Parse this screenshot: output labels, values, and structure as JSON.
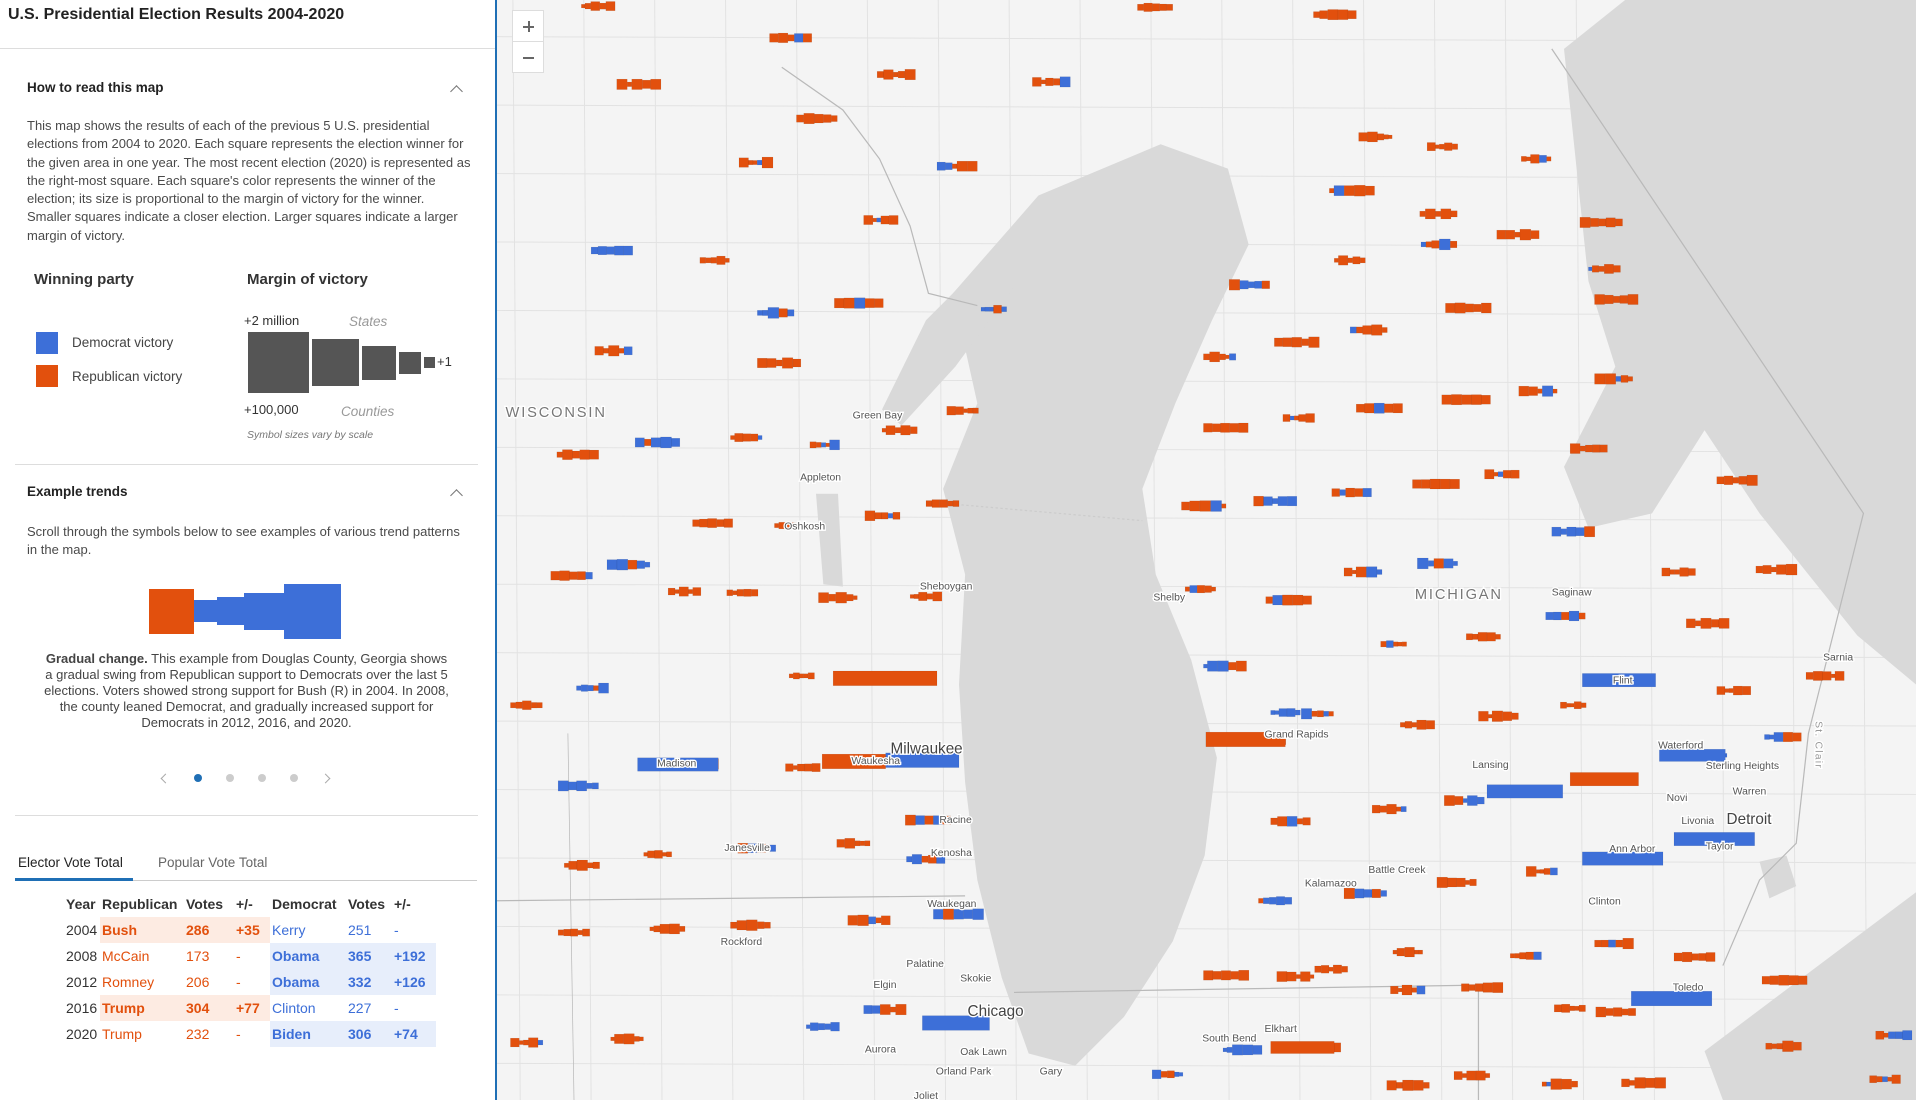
{
  "header": {
    "title": "U.S. Presidential Election Results 2004-2020"
  },
  "how_to": {
    "title": "How to read this map",
    "text": "This map shows the results of each of the previous 5 U.S. presidential elections from 2004 to 2020. Each square represents the election winner for the given area in one year. The most recent election (2020) is represented as the right-most square. Each square's color represents the winner of the election; its size is proportional to the margin of victory for the winner. Smaller squares indicate a closer election. Larger squares indicate a larger margin of victory."
  },
  "legend": {
    "party_heading": "Winning party",
    "margin_heading": "Margin of victory",
    "items": [
      "Democrat victory",
      "Republican victory"
    ],
    "max_state": "+2 million",
    "states": "States",
    "max_county": "+100,000",
    "counties": "Counties",
    "min": "+1",
    "note": "Symbol sizes vary by scale"
  },
  "trends": {
    "title": "Example trends",
    "intro": "Scroll through the symbols below to see examples of various trend patterns in the map.",
    "caption_lead": "Gradual change.",
    "caption": " This example from Douglas County, Georgia shows a gradual swing from Republican support to Democrats over the last 5 elections. Voters showed strong support for Bush (R) in 2004. In 2008, the county leaned Democrat, and gradually increased support for Democrats in 2012, 2016, and 2020."
  },
  "tabs": [
    "Elector Vote Total",
    "Popular Vote Total"
  ],
  "table": {
    "columns": [
      "Year",
      "Republican",
      "Votes",
      "+/-",
      "Democrat",
      "Votes",
      "+/-"
    ],
    "rows": [
      [
        2004,
        "Bush",
        286,
        "+35",
        "Kerry",
        251,
        "-"
      ],
      [
        2008,
        "McCain",
        173,
        "-",
        "Obama",
        365,
        "+192"
      ],
      [
        2012,
        "Romney",
        206,
        "-",
        "Obama",
        332,
        "+126"
      ],
      [
        2016,
        "Trump",
        304,
        "+77",
        "Clinton",
        227,
        "-"
      ],
      [
        2020,
        "Trump",
        232,
        "-",
        "Biden",
        306,
        "+74"
      ]
    ]
  },
  "map": {
    "labels": [
      "WISCONSIN",
      "MICHIGAN",
      "Green Bay",
      "Appleton",
      "Oshkosh",
      "Sheboygan",
      "Milwaukee",
      "Waukesha",
      "Madison",
      "Janesville",
      "Racine",
      "Kenosha",
      "Waukegan",
      "Rockford",
      "Elgin",
      "Palatine",
      "Skokie",
      "Chicago",
      "Aurora",
      "Oak Lawn",
      "Orland Park",
      "Joliet",
      "Gary",
      "South Bend",
      "Elkhart",
      "Grand Rapids",
      "Shelby",
      "Lansing",
      "Kalamazoo",
      "Battle Creek",
      "Flint",
      "Saginaw",
      "Sarnia",
      "Waterford",
      "Sterling Heights",
      "Warren",
      "Novi",
      "Livonia",
      "Detroit",
      "Taylor",
      "Ann Arbor",
      "Clinton",
      "Toledo",
      "St. Clair"
    ]
  }
}
